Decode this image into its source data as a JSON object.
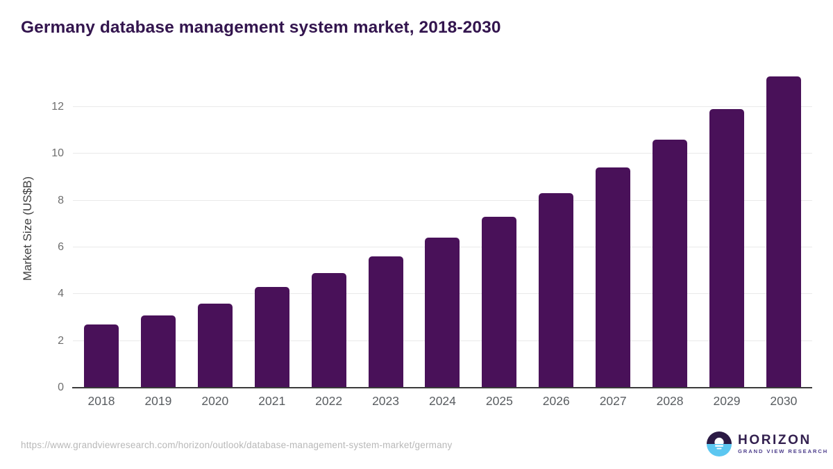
{
  "page": {
    "source_url": "https://www.grandviewresearch.com/horizon/outlook/database-management-system-market/germany"
  },
  "logo": {
    "brand": "HORIZON",
    "subtitle": "GRAND VIEW RESEARCH",
    "icon": "sunset-circle-icon"
  },
  "colors": {
    "title": "#33154e",
    "bar": "#491159",
    "gridline": "#e9e9e9",
    "axis_line": "#3a3a3a",
    "tick_label": "#6e6e6e",
    "x_label": "#595d61",
    "axis_title": "#3f3f3f",
    "source_text": "#b8b8b8",
    "logo_dark": "#2b1a44",
    "logo_blue": "#5cc7f1",
    "logo_text": "#33204f",
    "logo_subtext": "#4d3e8c"
  },
  "chart_data": {
    "type": "bar",
    "title": "Germany database management system market, 2018-2030",
    "categories": [
      "2018",
      "2019",
      "2020",
      "2021",
      "2022",
      "2023",
      "2024",
      "2025",
      "2026",
      "2027",
      "2028",
      "2029",
      "2030"
    ],
    "values": [
      2.7,
      3.1,
      3.6,
      4.3,
      4.9,
      5.6,
      6.4,
      7.3,
      8.3,
      9.4,
      10.6,
      11.9,
      13.3
    ],
    "xlabel": "",
    "ylabel": "Market Size (US$B)",
    "ylim": [
      0,
      13.6
    ],
    "yticks": [
      0,
      2,
      4,
      6,
      8,
      10,
      12
    ],
    "grid": true,
    "legend": false,
    "bar_color": "#491159"
  }
}
